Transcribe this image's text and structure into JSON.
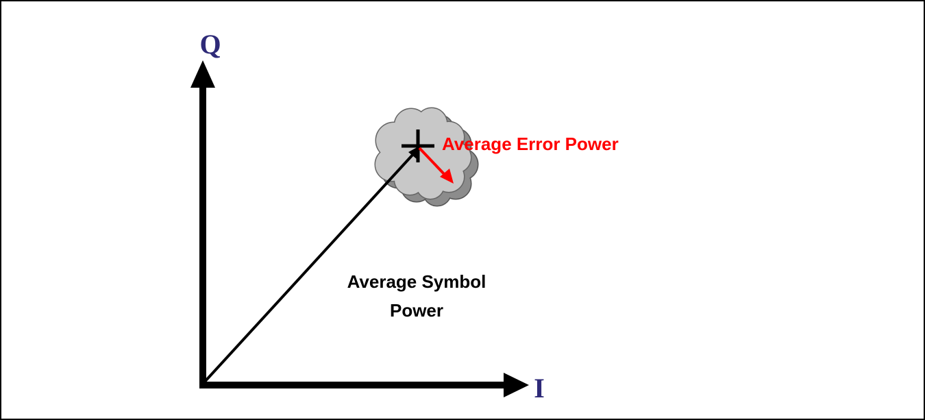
{
  "axes": {
    "q_label": "Q",
    "i_label": "I"
  },
  "labels": {
    "error": "Average Error Power",
    "symbol": [
      "Average Symbol",
      "Power"
    ]
  }
}
